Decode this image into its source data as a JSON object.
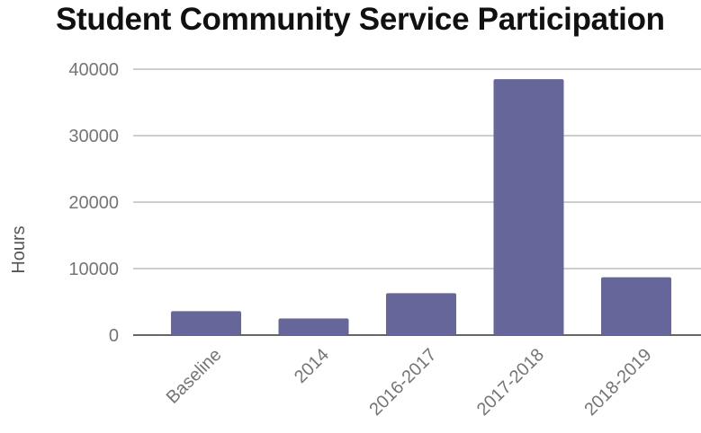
{
  "chart_data": {
    "type": "bar",
    "title": "Student Community Service Participation",
    "ylabel": "Hours",
    "xlabel": "",
    "categories": [
      "Baseline",
      "2014",
      "2016-2017",
      "2017-2018",
      "2018-2019"
    ],
    "values": [
      3600,
      2500,
      6300,
      38500,
      8700
    ],
    "ylim": [
      0,
      40000
    ],
    "yticks": [
      0,
      10000,
      20000,
      30000,
      40000
    ],
    "grid": true,
    "legend": "none",
    "bar_color": "#66669a"
  }
}
